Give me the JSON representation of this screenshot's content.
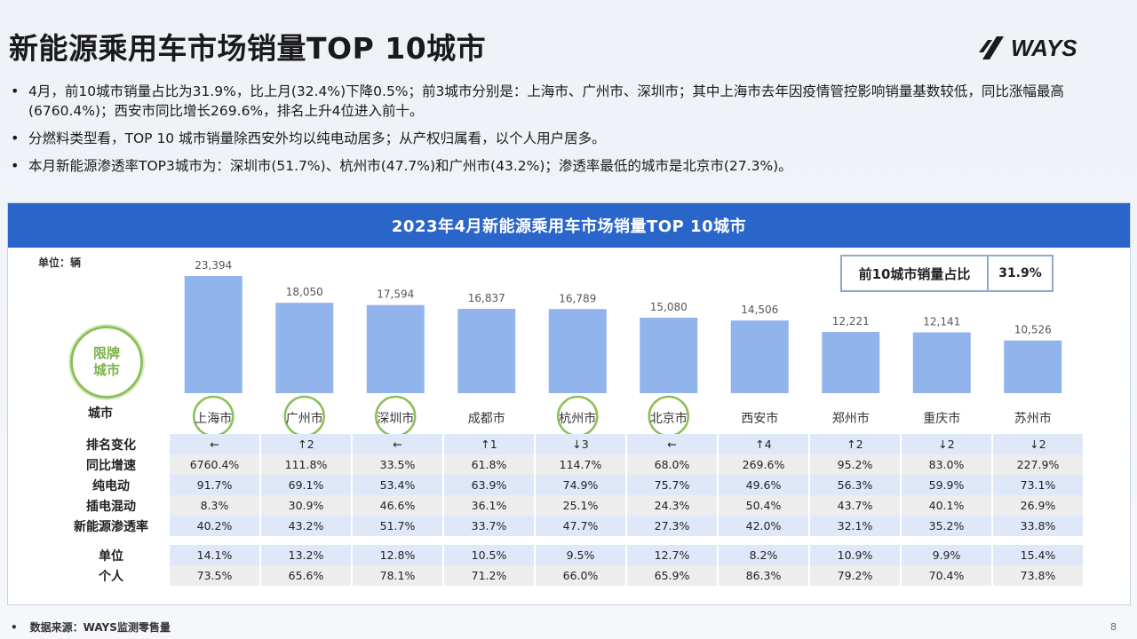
{
  "title": "新能源乘用车市场销量TOP 10城市",
  "logo_text": "WAYS",
  "bullets": [
    "4月，前10城市销量占比为31.9%，比上月(32.4%)下降0.5%；前3城市分别是：上海市、广州市、深圳市；其中上海市去年因疫情管控影响销量基数较低，同比涨幅最高 (6760.4%)；西安市同比增长269.6%，排名上升4位进入前十。",
    "分燃料类型看，TOP 10 城市销量除西安外均以纯电动居多；从产权归属看，以个人用户居多。",
    "本月新能源渗透率TOP3城市为：深圳市(51.7%)、杭州市(47.7%)和广州市(43.2%)；渗透率最低的城市是北京市(27.3%)。"
  ],
  "panel_title": "2023年4月新能源乘用车市场销量TOP 10城市",
  "unit_label": "单位：辆",
  "share_label": "前10城市销量占比",
  "share_value": "31.9%",
  "seal_line1": "限牌",
  "seal_line2": "城市",
  "row_labels": {
    "city": "城市",
    "rank": "排名变化",
    "yoy": "同比增速",
    "bev": "纯电动",
    "phev": "插电混动",
    "pen": "新能源渗透率",
    "org": "单位",
    "ind": "个人"
  },
  "bar_color": "#92b4ec",
  "circle_color": "#8bbf5a",
  "chart_data": {
    "type": "bar",
    "categories": [
      "上海市",
      "广州市",
      "深圳市",
      "成都市",
      "杭州市",
      "北京市",
      "西安市",
      "郑州市",
      "重庆市",
      "苏州市"
    ],
    "values": [
      23394,
      18050,
      17594,
      16837,
      16789,
      15080,
      14506,
      12221,
      12141,
      10526
    ],
    "value_labels": [
      "23,394",
      "18,050",
      "17,594",
      "16,837",
      "16,789",
      "15,080",
      "14,506",
      "12,221",
      "12,141",
      "10,526"
    ],
    "restricted_city": [
      true,
      true,
      true,
      false,
      true,
      true,
      false,
      false,
      false,
      false
    ],
    "ylim": [
      0,
      26000
    ]
  },
  "table": {
    "rank": [
      "←",
      "↑2",
      "←",
      "↑1",
      "↓3",
      "←",
      "↑4",
      "↑2",
      "↓2",
      "↓2"
    ],
    "yoy": [
      "6760.4%",
      "111.8%",
      "33.5%",
      "61.8%",
      "114.7%",
      "68.0%",
      "269.6%",
      "95.2%",
      "83.0%",
      "227.9%"
    ],
    "bev": [
      "91.7%",
      "69.1%",
      "53.4%",
      "63.9%",
      "74.9%",
      "75.7%",
      "49.6%",
      "56.3%",
      "59.9%",
      "73.1%"
    ],
    "phev": [
      "8.3%",
      "30.9%",
      "46.6%",
      "36.1%",
      "25.1%",
      "24.3%",
      "50.4%",
      "43.7%",
      "40.1%",
      "26.9%"
    ],
    "pen": [
      "40.2%",
      "43.2%",
      "51.7%",
      "33.7%",
      "47.7%",
      "27.3%",
      "42.0%",
      "32.1%",
      "35.2%",
      "33.8%"
    ],
    "org": [
      "14.1%",
      "13.2%",
      "12.8%",
      "10.5%",
      "9.5%",
      "12.7%",
      "8.2%",
      "10.9%",
      "9.9%",
      "15.4%"
    ],
    "ind": [
      "73.5%",
      "65.6%",
      "78.1%",
      "71.2%",
      "66.0%",
      "65.9%",
      "86.3%",
      "79.2%",
      "70.4%",
      "73.8%"
    ]
  },
  "footer_source": "数据来源：WAYS监测零售量",
  "page_number": "8"
}
